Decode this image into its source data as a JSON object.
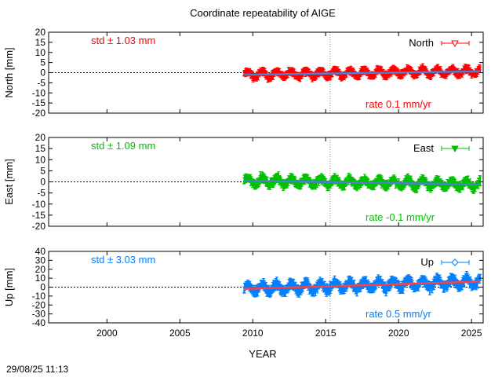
{
  "figure": {
    "title": "Coordinate repeatability of AIGE",
    "xlabel": "YEAR",
    "timestamp": "29/08/25 11:13"
  },
  "chart_data": [
    {
      "type": "scatter",
      "component": "North",
      "ylabel": "North [mm]",
      "legend": "North",
      "legend_position": "top-right",
      "std_label": "std ± 1.03 mm",
      "rate_label": "rate  0.1 mm/yr",
      "color": "#ff0000",
      "trend_color": "#4a7fd4",
      "xlim": [
        1996,
        2025.8
      ],
      "ylim": [
        -20,
        20
      ],
      "yticks": [
        20,
        15,
        10,
        5,
        0,
        -5,
        -10,
        -15,
        -20
      ],
      "xticks": [
        2000,
        2005,
        2010,
        2015,
        2020,
        2025
      ],
      "data_start": 2009.4,
      "data_end": 2025.6,
      "std": 1.03,
      "rate": 0.1,
      "offset_at_start": -1.0,
      "vertical_marker": 2015.3,
      "grid": false
    },
    {
      "type": "scatter",
      "component": "East",
      "ylabel": "East [mm]",
      "legend": "East",
      "legend_position": "top-right",
      "std_label": "std ± 1.09 mm",
      "rate_label": "rate -0.1 mm/yr",
      "color": "#00c000",
      "trend_color": "#4a7fd4",
      "xlim": [
        1996,
        2025.8
      ],
      "ylim": [
        -20,
        20
      ],
      "yticks": [
        20,
        15,
        10,
        5,
        0,
        -5,
        -10,
        -15,
        -20
      ],
      "xticks": [
        2000,
        2005,
        2010,
        2015,
        2020,
        2025
      ],
      "data_start": 2009.4,
      "data_end": 2025.6,
      "std": 1.09,
      "rate": -0.1,
      "offset_at_start": 0.5,
      "vertical_marker": 2015.3,
      "grid": false
    },
    {
      "type": "scatter",
      "component": "Up",
      "ylabel": "Up [mm]",
      "legend": "Up",
      "legend_position": "top-right",
      "std_label": "std ± 3.03 mm",
      "rate_label": "rate  0.5 mm/yr",
      "color": "#0080ff",
      "trend_color": "#ff4040",
      "xlim": [
        1996,
        2025.8
      ],
      "ylim": [
        -40,
        40
      ],
      "yticks": [
        40,
        30,
        20,
        10,
        0,
        -10,
        -20,
        -30,
        -40
      ],
      "xticks": [
        2000,
        2005,
        2010,
        2015,
        2020,
        2025
      ],
      "xtick_labels": [
        "2000",
        "2005",
        "2010",
        "2015",
        "2020",
        "2025"
      ],
      "data_start": 2009.4,
      "data_end": 2025.6,
      "std": 3.03,
      "rate": 0.5,
      "offset_at_start": -2.0,
      "vertical_marker": 2015.3,
      "grid": false
    }
  ]
}
